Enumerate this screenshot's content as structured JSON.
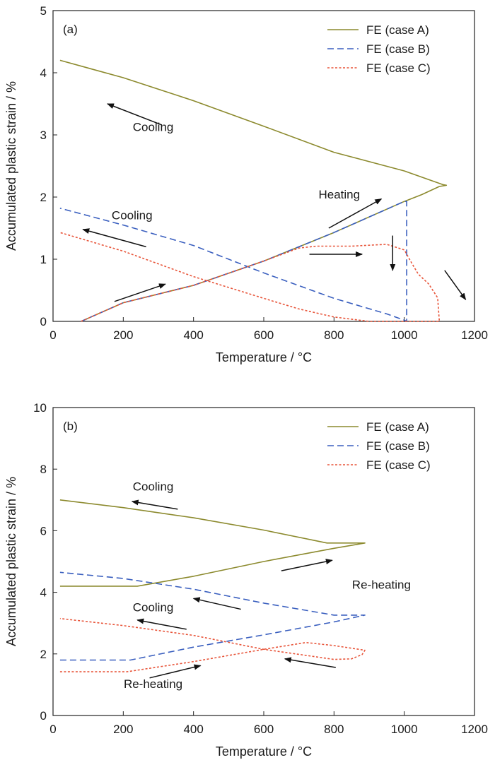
{
  "chart_data": [
    {
      "type": "line",
      "panel_label": "(a)",
      "xlabel": "Temperature / °C",
      "ylabel": "Accumulated plastic strain / %",
      "xlim": [
        0,
        1200
      ],
      "ylim": [
        0,
        5
      ],
      "xticks": [
        "0",
        "200",
        "400",
        "600",
        "800",
        "1000",
        "1200"
      ],
      "yticks": [
        "0",
        "1",
        "2",
        "3",
        "4",
        "5"
      ],
      "grid": false,
      "legend_position": "top-right",
      "series": [
        {
          "name": "FE (case A)",
          "color": "#8c8a2e",
          "style": "solid",
          "points": [
            [
              80,
              0
            ],
            [
              200,
              0.3
            ],
            [
              400,
              0.58
            ],
            [
              600,
              0.97
            ],
            [
              800,
              1.43
            ],
            [
              1000,
              1.93
            ],
            [
              1050,
              2.04
            ],
            [
              1100,
              2.17
            ],
            [
              1120,
              2.19
            ],
            [
              1110,
              2.2
            ],
            [
              1000,
              2.42
            ],
            [
              800,
              2.72
            ],
            [
              600,
              3.14
            ],
            [
              400,
              3.55
            ],
            [
              200,
              3.92
            ],
            [
              20,
              4.2
            ]
          ]
        },
        {
          "name": "FE (case B)",
          "color": "#3a5fbf",
          "style": "dashed",
          "points": [
            [
              80,
              0
            ],
            [
              200,
              0.3
            ],
            [
              400,
              0.58
            ],
            [
              600,
              0.97
            ],
            [
              800,
              1.43
            ],
            [
              1000,
              1.93
            ],
            [
              1007,
              1.93
            ],
            [
              1007,
              0
            ],
            [
              1000,
              0.02
            ],
            [
              950,
              0.12
            ],
            [
              800,
              0.37
            ],
            [
              600,
              0.78
            ],
            [
              400,
              1.22
            ],
            [
              200,
              1.55
            ],
            [
              20,
              1.82
            ]
          ]
        },
        {
          "name": "FE (case C)",
          "color": "#e8553a",
          "style": "dotted",
          "points": [
            [
              80,
              0
            ],
            [
              200,
              0.3
            ],
            [
              400,
              0.58
            ],
            [
              600,
              0.97
            ],
            [
              700,
              1.18
            ],
            [
              750,
              1.21
            ],
            [
              850,
              1.21
            ],
            [
              950,
              1.24
            ],
            [
              1000,
              1.15
            ],
            [
              1020,
              0.95
            ],
            [
              1040,
              0.76
            ],
            [
              1070,
              0.6
            ],
            [
              1095,
              0.38
            ],
            [
              1100,
              0
            ],
            [
              1000,
              0
            ],
            [
              900,
              0
            ],
            [
              800,
              0.07
            ],
            [
              700,
              0.2
            ],
            [
              600,
              0.37
            ],
            [
              400,
              0.72
            ],
            [
              200,
              1.13
            ],
            [
              20,
              1.43
            ]
          ]
        }
      ],
      "annotations": [
        {
          "text": "Cooling",
          "x": 285,
          "y": 3.06
        },
        {
          "text": "Heating",
          "x": 815,
          "y": 1.98
        },
        {
          "text": "Cooling",
          "x": 225,
          "y": 1.64
        }
      ],
      "arrows": [
        {
          "from": [
            310,
            3.16
          ],
          "to": [
            155,
            3.5
          ]
        },
        {
          "from": [
            785,
            1.5
          ],
          "to": [
            935,
            1.97
          ]
        },
        {
          "from": [
            265,
            1.2
          ],
          "to": [
            85,
            1.48
          ]
        },
        {
          "from": [
            175,
            0.32
          ],
          "to": [
            320,
            0.6
          ]
        },
        {
          "from": [
            730,
            1.08
          ],
          "to": [
            880,
            1.08
          ]
        },
        {
          "from": [
            967,
            1.38
          ],
          "to": [
            967,
            0.82
          ]
        },
        {
          "from": [
            1115,
            0.82
          ],
          "to": [
            1175,
            0.35
          ]
        }
      ]
    },
    {
      "type": "line",
      "panel_label": "(b)",
      "xlabel": "Temperature / °C",
      "ylabel": "Accumulated plastic strain / %",
      "xlim": [
        0,
        1200
      ],
      "ylim": [
        0,
        10
      ],
      "xticks": [
        "0",
        "200",
        "400",
        "600",
        "800",
        "1000",
        "1200"
      ],
      "yticks": [
        "0",
        "2",
        "4",
        "6",
        "8",
        "10"
      ],
      "grid": false,
      "legend_position": "top-right",
      "series": [
        {
          "name": "FE (case A)",
          "color": "#8c8a2e",
          "style": "solid",
          "points": [
            [
              20,
              4.2
            ],
            [
              240,
              4.2
            ],
            [
              400,
              4.52
            ],
            [
              600,
              5.0
            ],
            [
              800,
              5.43
            ],
            [
              888,
              5.6
            ],
            [
              780,
              5.6
            ],
            [
              600,
              6.02
            ],
            [
              400,
              6.42
            ],
            [
              200,
              6.75
            ],
            [
              20,
              7.0
            ]
          ]
        },
        {
          "name": "FE (case B)",
          "color": "#3a5fbf",
          "style": "dashed",
          "points": [
            [
              20,
              1.8
            ],
            [
              220,
              1.8
            ],
            [
              400,
              2.22
            ],
            [
              600,
              2.62
            ],
            [
              800,
              3.04
            ],
            [
              888,
              3.26
            ],
            [
              800,
              3.26
            ],
            [
              600,
              3.65
            ],
            [
              400,
              4.1
            ],
            [
              200,
              4.45
            ],
            [
              20,
              4.65
            ]
          ]
        },
        {
          "name": "FE (case C)",
          "color": "#e8553a",
          "style": "dotted",
          "points": [
            [
              20,
              1.42
            ],
            [
              210,
              1.42
            ],
            [
              400,
              1.75
            ],
            [
              600,
              2.15
            ],
            [
              720,
              2.37
            ],
            [
              800,
              2.27
            ],
            [
              888,
              2.12
            ],
            [
              880,
              1.98
            ],
            [
              850,
              1.84
            ],
            [
              800,
              1.82
            ],
            [
              600,
              2.15
            ],
            [
              400,
              2.6
            ],
            [
              200,
              2.92
            ],
            [
              20,
              3.15
            ]
          ]
        }
      ],
      "annotations": [
        {
          "text": "Cooling",
          "x": 285,
          "y": 7.3
        },
        {
          "text": "Re-heating",
          "x": 935,
          "y": 4.12
        },
        {
          "text": "Cooling",
          "x": 285,
          "y": 3.38
        },
        {
          "text": "Re-heating",
          "x": 285,
          "y": 0.9
        }
      ],
      "arrows": [
        {
          "from": [
            355,
            6.7
          ],
          "to": [
            225,
            6.95
          ]
        },
        {
          "from": [
            650,
            4.7
          ],
          "to": [
            795,
            5.04
          ]
        },
        {
          "from": [
            535,
            3.45
          ],
          "to": [
            400,
            3.8
          ]
        },
        {
          "from": [
            380,
            2.8
          ],
          "to": [
            240,
            3.1
          ]
        },
        {
          "from": [
            275,
            1.22
          ],
          "to": [
            420,
            1.62
          ]
        },
        {
          "from": [
            805,
            1.56
          ],
          "to": [
            660,
            1.84
          ]
        }
      ]
    }
  ]
}
